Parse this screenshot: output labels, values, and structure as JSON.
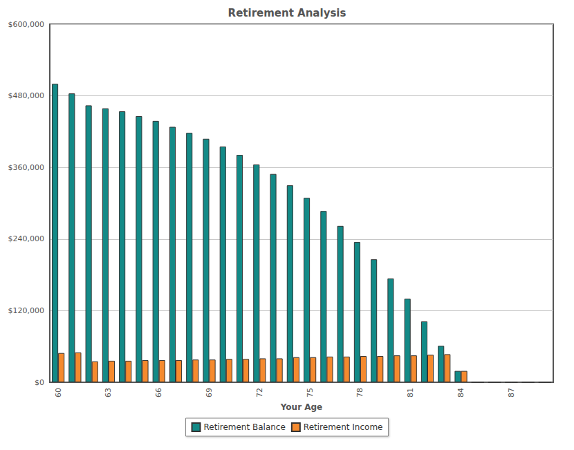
{
  "chart_data": {
    "type": "bar",
    "title": "Retirement Analysis",
    "x_label": "Your Age",
    "categories": [
      60,
      null,
      null,
      63,
      null,
      null,
      66,
      null,
      null,
      69,
      null,
      null,
      72,
      null,
      null,
      75,
      null,
      null,
      78,
      null,
      null,
      81,
      null,
      null,
      84,
      null,
      null,
      87,
      null,
      null
    ],
    "series": [
      {
        "name": "Retirement Balance",
        "color": "#138a87",
        "values": [
          500000,
          484000,
          464000,
          459000,
          454000,
          446000,
          438000,
          428000,
          418000,
          408000,
          395000,
          381000,
          365000,
          349000,
          330000,
          309000,
          287000,
          262000,
          235000,
          206000,
          174000,
          140000,
          102000,
          61000,
          19000,
          0,
          0,
          0,
          0,
          0
        ]
      },
      {
        "name": "Retirement Income",
        "color": "#f58a2e",
        "values": [
          49000,
          50000,
          35000,
          36000,
          36000,
          37000,
          37000,
          37000,
          38000,
          38000,
          39000,
          39000,
          40000,
          40000,
          42000,
          42000,
          43000,
          43000,
          44000,
          44000,
          45000,
          45000,
          46000,
          47000,
          19000,
          0,
          0,
          0,
          0,
          0
        ]
      }
    ],
    "ylim": [
      0,
      600000
    ],
    "yticks": [
      {
        "value": 0,
        "label": "$0"
      },
      {
        "value": 120000,
        "label": "$120,000"
      },
      {
        "value": 240000,
        "label": "$240,000"
      },
      {
        "value": 360000,
        "label": "$360,000"
      },
      {
        "value": 480000,
        "label": "$480,000"
      },
      {
        "value": 600000,
        "label": "$600,000"
      }
    ],
    "grid": true,
    "legend": "bottom"
  }
}
